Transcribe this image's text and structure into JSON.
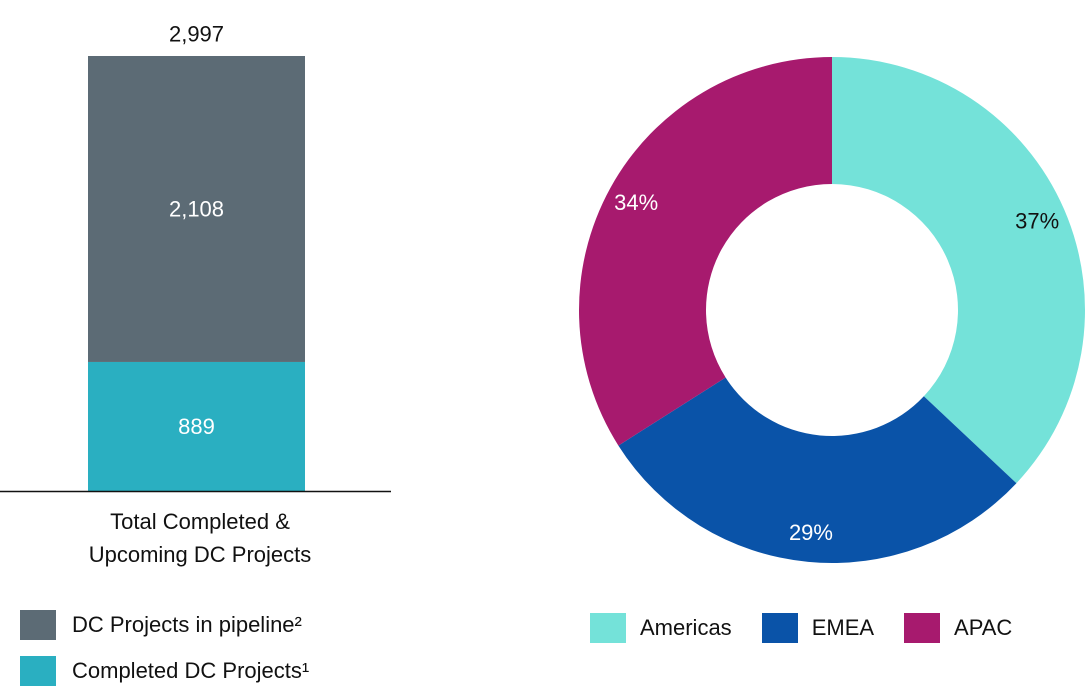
{
  "chart_data": [
    {
      "type": "bar",
      "stacked": true,
      "categories": [
        "Total Completed & Upcoming DC Projects"
      ],
      "category_label_lines": [
        "Total Completed &",
        "Upcoming DC Projects"
      ],
      "series": [
        {
          "name": "Completed DC Projects¹",
          "values": [
            889
          ],
          "color": "#2aafc1"
        },
        {
          "name": "DC Projects in pipeline²",
          "values": [
            2108
          ],
          "color": "#5c6b75"
        }
      ],
      "segment_labels": [
        "889",
        "2,108"
      ],
      "total": 2997,
      "total_label": "2,997",
      "ylim": [
        0,
        2997
      ],
      "grid": false,
      "legend_position": "bottom-left"
    },
    {
      "type": "pie",
      "donut": true,
      "slices": [
        {
          "name": "Americas",
          "value": 37,
          "label": "37%",
          "color": "#74e2d9",
          "label_color": "#111111"
        },
        {
          "name": "EMEA",
          "value": 29,
          "label": "29%",
          "color": "#0a53a8",
          "label_color": "#ffffff"
        },
        {
          "name": "APAC",
          "value": 34,
          "label": "34%",
          "color": "#a71a6e",
          "label_color": "#ffffff"
        }
      ],
      "start": "top",
      "direction": "clockwise",
      "legend_position": "bottom"
    }
  ]
}
